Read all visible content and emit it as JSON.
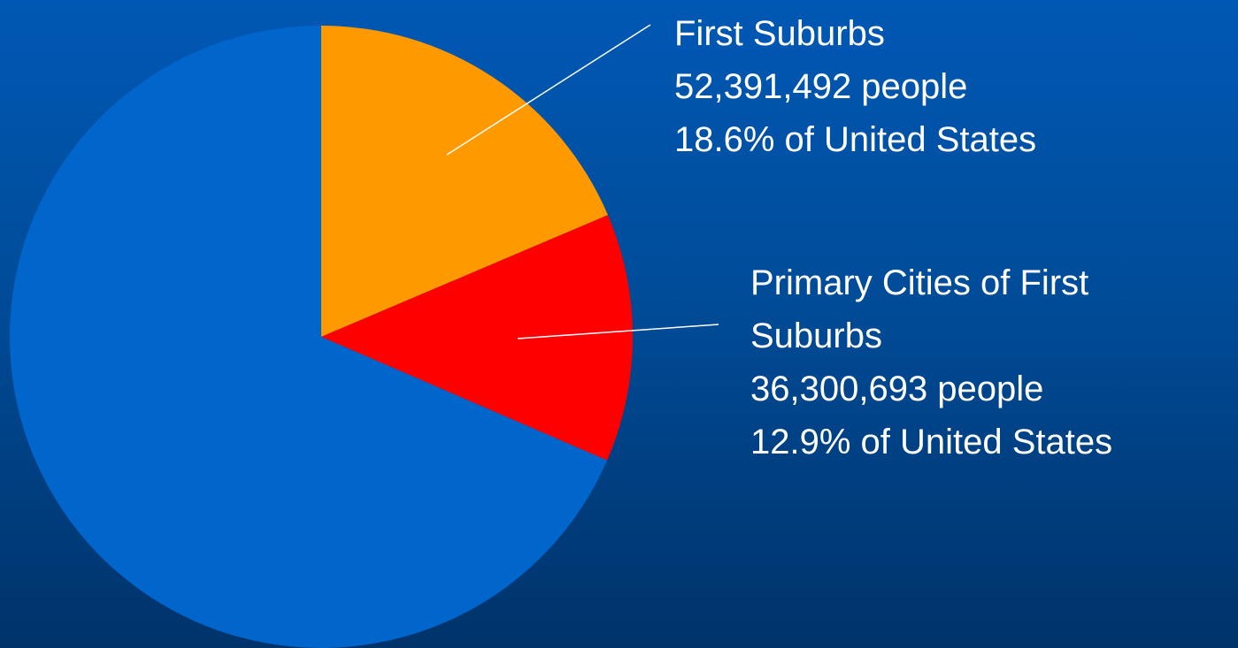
{
  "chart_data": {
    "type": "pie",
    "categories": [
      "First Suburbs",
      "Primary Cities of First Suburbs",
      null
    ],
    "values": [
      18.6,
      12.9,
      68.5
    ],
    "value_labels": [
      "18.6% of United States",
      "12.9% of United States",
      null
    ],
    "population_labels": [
      "52,391,492 people",
      "36,300,693 people",
      null
    ],
    "colors": [
      "#ff9900",
      "#ff0000",
      "#0066cc"
    ]
  }
}
